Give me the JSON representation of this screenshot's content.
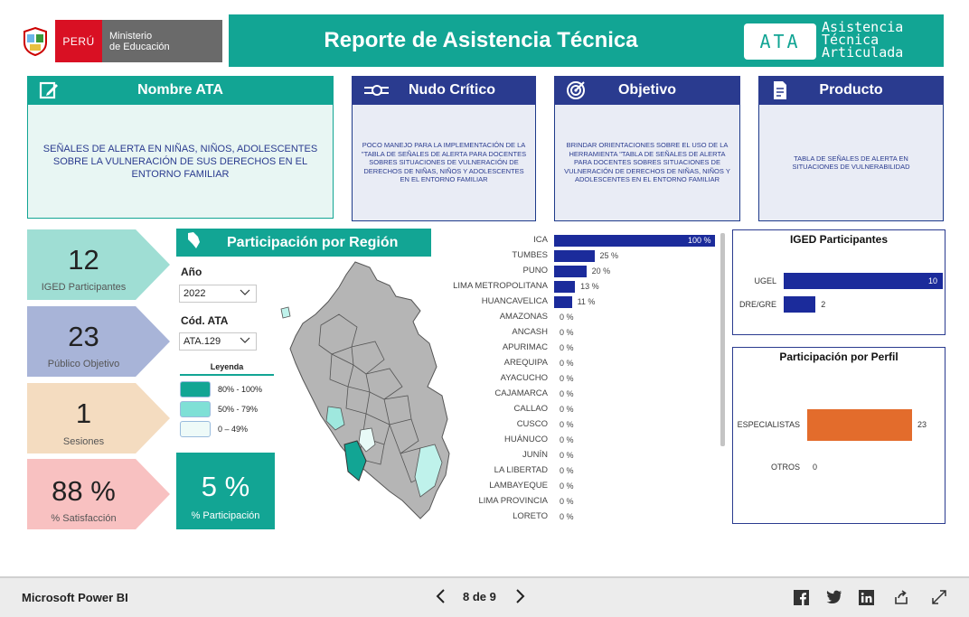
{
  "header": {
    "country": "PERÚ",
    "ministry_line1": "Ministerio",
    "ministry_line2": "de Educación",
    "title": "Reporte de Asistencia Técnica",
    "badge": "ATA",
    "badge_sub1": "Asistencia",
    "badge_sub2": "Técnica",
    "badge_sub3": "Articulada"
  },
  "cards": {
    "nombre": {
      "title": "Nombre ATA",
      "icon": "edit-icon",
      "body": "SEÑALES DE ALERTA EN NIÑAS, NIÑOS, ADOLESCENTES SOBRE LA VULNERACIÓN DE SUS DERECHOS EN EL ENTORNO FAMILIAR"
    },
    "nudo": {
      "title": "Nudo Crítico",
      "icon": "knot-icon",
      "body": "POCO MANEJO PARA LA IMPLEMENTACIÓN DE LA \"TABLA DE SEÑALES DE ALERTA PARA DOCENTES SOBRES SITUACIONES DE VULNERACIÓN DE DERECHOS DE NIÑAS, NIÑOS Y ADOLESCENTES EN EL ENTORNO FAMILIAR"
    },
    "objetivo": {
      "title": "Objetivo",
      "icon": "target-icon",
      "body": "BRINDAR ORIENTACIONES SOBRE EL USO DE LA HERRAMIENTA \"TABLA DE SEÑALES DE ALERTA PARA DOCENTES SOBRES SITUACIONES DE VULNERACIÓN DE DERECHOS DE NIÑAS, NIÑOS Y ADOLESCENTES EN EL ENTORNO FAMILIAR"
    },
    "producto": {
      "title": "Producto",
      "icon": "document-icon",
      "body": "TABLA DE SEÑALES DE ALERTA EN SITUACIONES DE VULNERABILIDAD"
    }
  },
  "kpis": {
    "iged": {
      "value": "12",
      "label": "IGED Participantes"
    },
    "publico": {
      "value": "23",
      "label": "Público Objetivo"
    },
    "sesiones": {
      "value": "1",
      "label": "Sesiones"
    },
    "satisfaccion": {
      "value": "88 %",
      "label": "% Satisfacción"
    },
    "participacion": {
      "value": "5 %",
      "label": "% Participación"
    }
  },
  "colors": {
    "teal": "#12a594",
    "navy": "#1e3a8a",
    "bar": "#1b2b9b",
    "orange": "#e36c2c",
    "kpi1": "#9fded4",
    "kpi2": "#a8b4d8",
    "kpi3": "#f4dcc0",
    "kpi4": "#f8c1c1"
  },
  "region": {
    "title": "Participación por Región",
    "year_label": "Año",
    "year_value": "2022",
    "code_label": "Cód. ATA",
    "code_value": "ATA.129",
    "legend_title": "Leyenda",
    "legend": [
      {
        "label": "80% - 100%",
        "color": "#12a594"
      },
      {
        "label": "50% - 79%",
        "color": "#7fe0d6"
      },
      {
        "label": "0 – 49%",
        "color": "#eefaf8"
      }
    ]
  },
  "regions_chart": {
    "type": "bar",
    "categories": [
      "ICA",
      "TUMBES",
      "PUNO",
      "LIMA METROPOLITANA",
      "HUANCAVELICA",
      "AMAZONAS",
      "ANCASH",
      "APURIMAC",
      "AREQUIPA",
      "AYACUCHO",
      "CAJAMARCA",
      "CALLAO",
      "CUSCO",
      "HUÁNUCO",
      "JUNÍN",
      "LA LIBERTAD",
      "LAMBAYEQUE",
      "LIMA PROVINCIA",
      "LORETO"
    ],
    "values": [
      100,
      25,
      20,
      13,
      11,
      0,
      0,
      0,
      0,
      0,
      0,
      0,
      0,
      0,
      0,
      0,
      0,
      0,
      0
    ],
    "labels": [
      "100 %",
      "25 %",
      "20 %",
      "13 %",
      "11 %",
      "0 %",
      "0 %",
      "0 %",
      "0 %",
      "0 %",
      "0 %",
      "0 %",
      "0 %",
      "0 %",
      "0 %",
      "0 %",
      "0 %",
      "0 %",
      "0 %"
    ]
  },
  "iged_chart": {
    "title": "IGED Participantes",
    "type": "bar",
    "categories": [
      "UGEL",
      "DRE/GRE"
    ],
    "values": [
      10,
      2
    ]
  },
  "perfil_chart": {
    "title": "Participación por Perfil",
    "type": "bar",
    "categories": [
      "ESPECIALISTAS",
      "OTROS"
    ],
    "values": [
      23,
      0
    ]
  },
  "footer": {
    "brand": "Microsoft Power BI",
    "page": "8 de 9"
  }
}
